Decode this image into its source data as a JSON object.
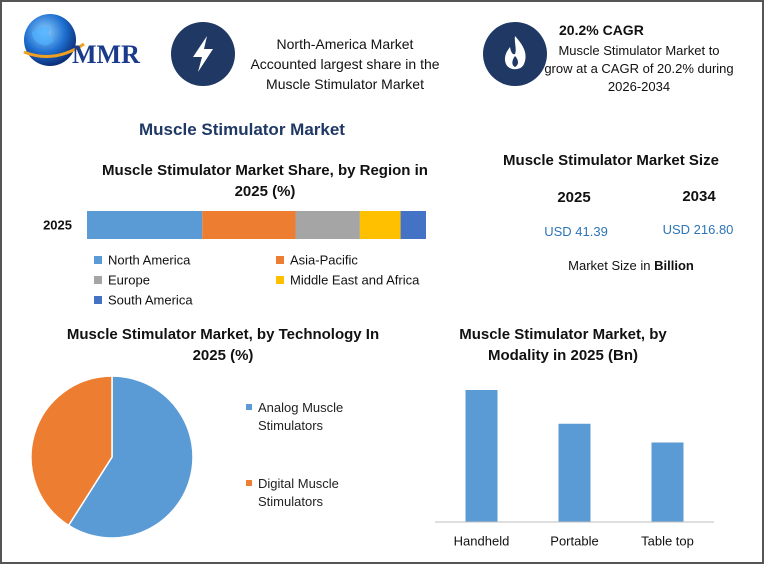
{
  "header": {
    "logo": "MMR",
    "cards": [
      {
        "text": "North-America Market Accounted largest share in the Muscle Stimulator Market"
      },
      {
        "title": "20.2% CAGR",
        "text": "Muscle Stimulator Market to grow at a CAGR of 20.2% during 2026-2034"
      }
    ],
    "title": "Muscle Stimulator Market"
  },
  "market_size": {
    "title": "Muscle Stimulator Market Size",
    "years": [
      "2025",
      "2034"
    ],
    "values": [
      "USD 41.39",
      "USD 216.80"
    ],
    "note": "Market Size in",
    "note_unit": "Billion"
  },
  "chart_data": [
    {
      "type": "hbar-stacked",
      "title": "Muscle Stimulator Market Share, by Region in 2025 (%)",
      "categories": [
        "2025"
      ],
      "xlim": [
        0,
        100
      ],
      "series": [
        {
          "name": "North America",
          "color": "#5b9bd5",
          "values": [
            34
          ]
        },
        {
          "name": "Asia-Pacific",
          "color": "#ed7d31",
          "values": [
            27.5
          ]
        },
        {
          "name": "Europe",
          "color": "#a5a5a5",
          "values": [
            19
          ]
        },
        {
          "name": "Middle East and Africa",
          "color": "#ffc000",
          "values": [
            12
          ]
        },
        {
          "name": "South America",
          "color": "#4472c4",
          "values": [
            7.5
          ]
        }
      ]
    },
    {
      "type": "pie",
      "title": "Muscle Stimulator Market, by Technology In 2025 (%)",
      "categories": [
        "Analog Muscle Stimulators",
        "Digital Muscle Stimulators"
      ],
      "values": [
        59,
        41
      ],
      "colors": [
        "#5b9bd5",
        "#ed7d31"
      ]
    },
    {
      "type": "bar",
      "title": "Muscle Stimulator Market, by Modality in 2025 (Bn)",
      "categories": [
        "Handheld",
        "Portable",
        "Table top"
      ],
      "values": [
        17.6,
        13.1,
        10.6
      ],
      "color": "#5b9bd5",
      "ylim": [
        0,
        20
      ]
    }
  ]
}
